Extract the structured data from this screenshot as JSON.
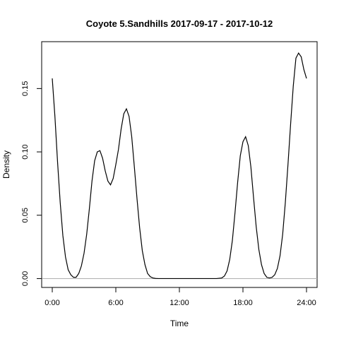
{
  "chart_data": {
    "type": "line",
    "title": "Coyote 5.Sandhills 2017-09-17 - 2017-10-12",
    "xlabel": "Time",
    "ylabel": "Density",
    "xlim": [
      -1,
      25
    ],
    "ylim": [
      -0.007,
      0.187
    ],
    "x_ticks": [
      0,
      6,
      12,
      18,
      24
    ],
    "x_tick_labels": [
      "0:00",
      "6:00",
      "12:00",
      "18:00",
      "24:00"
    ],
    "y_ticks": [
      0.0,
      0.05,
      0.1,
      0.15
    ],
    "y_tick_labels": [
      "0.00",
      "0.05",
      "0.10",
      "0.15"
    ],
    "baseline": 0,
    "grid": false,
    "series": [
      {
        "color": "#000000",
        "x": [
          0.0,
          0.25,
          0.5,
          0.75,
          1.0,
          1.25,
          1.5,
          1.75,
          2.0,
          2.25,
          2.5,
          2.75,
          3.0,
          3.25,
          3.5,
          3.75,
          4.0,
          4.25,
          4.5,
          4.75,
          5.0,
          5.25,
          5.5,
          5.75,
          6.0,
          6.25,
          6.5,
          6.75,
          7.0,
          7.25,
          7.5,
          7.75,
          8.0,
          8.25,
          8.5,
          8.75,
          9.0,
          9.25,
          9.5,
          9.75,
          10.0,
          10.5,
          11.0,
          12.0,
          13.0,
          14.0,
          15.0,
          15.5,
          16.0,
          16.25,
          16.5,
          16.75,
          17.0,
          17.25,
          17.5,
          17.75,
          18.0,
          18.25,
          18.5,
          18.75,
          19.0,
          19.25,
          19.5,
          19.75,
          20.0,
          20.25,
          20.5,
          20.75,
          21.0,
          21.25,
          21.5,
          21.75,
          22.0,
          22.25,
          22.5,
          22.75,
          23.0,
          23.25,
          23.5,
          23.75,
          24.0
        ],
        "y": [
          0.158,
          0.128,
          0.092,
          0.06,
          0.034,
          0.017,
          0.007,
          0.003,
          0.001,
          0.001,
          0.004,
          0.01,
          0.02,
          0.035,
          0.055,
          0.077,
          0.093,
          0.1,
          0.101,
          0.095,
          0.085,
          0.077,
          0.074,
          0.079,
          0.09,
          0.102,
          0.118,
          0.13,
          0.134,
          0.128,
          0.112,
          0.088,
          0.063,
          0.04,
          0.022,
          0.011,
          0.004,
          0.0015,
          0.0005,
          0.0001,
          0.0,
          0.0,
          0.0,
          0.0,
          0.0,
          0.0,
          0.0,
          0.0,
          0.0005,
          0.002,
          0.006,
          0.015,
          0.03,
          0.052,
          0.076,
          0.097,
          0.108,
          0.112,
          0.105,
          0.088,
          0.064,
          0.041,
          0.023,
          0.011,
          0.004,
          0.001,
          0.0005,
          0.001,
          0.003,
          0.008,
          0.018,
          0.035,
          0.06,
          0.09,
          0.122,
          0.152,
          0.174,
          0.178,
          0.175,
          0.165,
          0.158
        ]
      }
    ]
  }
}
